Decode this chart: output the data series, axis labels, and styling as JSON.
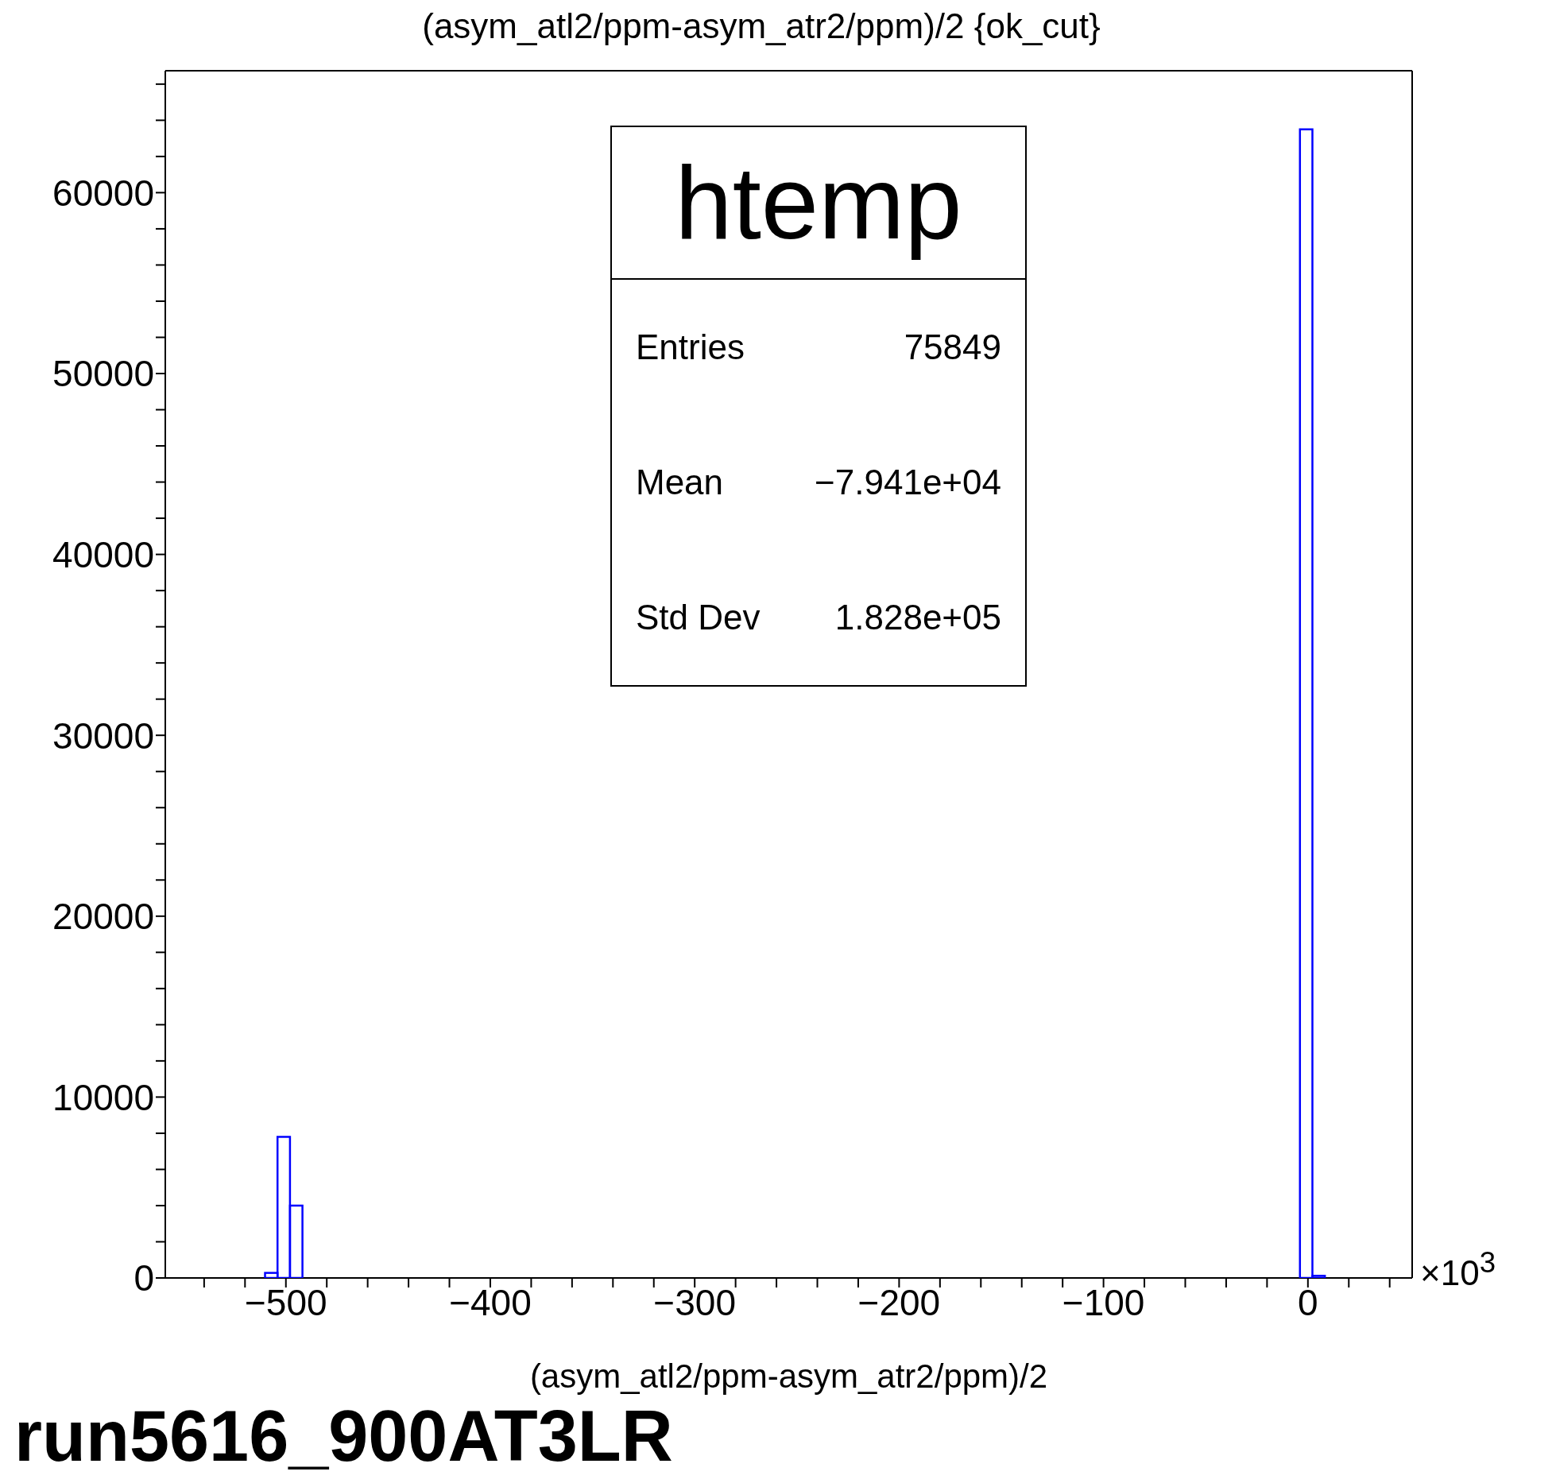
{
  "chart_data": {
    "type": "histogram",
    "title": "(asym_atl2/ppm-asym_atr2/ppm)/2 {ok_cut}",
    "xlabel": "(asym_atl2/ppm-asym_atr2/ppm)/2",
    "bins": [
      -510.2,
      -504.1,
      -498,
      -491.9,
      -3.9,
      2.2,
      8.3
    ],
    "values": [
      280,
      7800,
      4000,
      0,
      63500,
      120
    ],
    "color": "#0000ff",
    "xlim": [
      -559,
      51
    ],
    "xticks": [
      {
        "value": -540,
        "label": null
      },
      {
        "value": -520,
        "label": null
      },
      {
        "value": -500,
        "label": "−500"
      },
      {
        "value": -480,
        "label": null
      },
      {
        "value": -460,
        "label": null
      },
      {
        "value": -440,
        "label": null
      },
      {
        "value": -420,
        "label": null
      },
      {
        "value": -400,
        "label": "−400"
      },
      {
        "value": -380,
        "label": null
      },
      {
        "value": -360,
        "label": null
      },
      {
        "value": -340,
        "label": null
      },
      {
        "value": -320,
        "label": null
      },
      {
        "value": -300,
        "label": "−300"
      },
      {
        "value": -280,
        "label": null
      },
      {
        "value": -260,
        "label": null
      },
      {
        "value": -240,
        "label": null
      },
      {
        "value": -220,
        "label": null
      },
      {
        "value": -200,
        "label": "−200"
      },
      {
        "value": -180,
        "label": null
      },
      {
        "value": -160,
        "label": null
      },
      {
        "value": -140,
        "label": null
      },
      {
        "value": -120,
        "label": null
      },
      {
        "value": -100,
        "label": "−100"
      },
      {
        "value": -80,
        "label": null
      },
      {
        "value": -60,
        "label": null
      },
      {
        "value": -40,
        "label": null
      },
      {
        "value": -20,
        "label": null
      },
      0,
      {
        "value": 20,
        "label": null
      },
      {
        "value": 40,
        "label": null
      }
    ],
    "ylim": [
      0,
      66740
    ],
    "yticks": [
      0,
      {
        "value": 2000,
        "label": null
      },
      {
        "value": 4000,
        "label": null
      },
      {
        "value": 6000,
        "label": null
      },
      {
        "value": 8000,
        "label": null
      },
      10000,
      {
        "value": 12000,
        "label": null
      },
      {
        "value": 14000,
        "label": null
      },
      {
        "value": 16000,
        "label": null
      },
      {
        "value": 18000,
        "label": null
      },
      20000,
      {
        "value": 22000,
        "label": null
      },
      {
        "value": 24000,
        "label": null
      },
      {
        "value": 26000,
        "label": null
      },
      {
        "value": 28000,
        "label": null
      },
      30000,
      {
        "value": 32000,
        "label": null
      },
      {
        "value": 34000,
        "label": null
      },
      {
        "value": 36000,
        "label": null
      },
      {
        "value": 38000,
        "label": null
      },
      40000,
      {
        "value": 42000,
        "label": null
      },
      {
        "value": 44000,
        "label": null
      },
      {
        "value": 46000,
        "label": null
      },
      {
        "value": 48000,
        "label": null
      },
      50000,
      {
        "value": 52000,
        "label": null
      },
      {
        "value": 54000,
        "label": null
      },
      {
        "value": 56000,
        "label": null
      },
      {
        "value": 58000,
        "label": null
      },
      60000,
      {
        "value": 62000,
        "label": null
      },
      {
        "value": 64000,
        "label": null
      },
      {
        "value": 66000,
        "label": null
      }
    ],
    "annotations": [
      "htemp",
      "Entries",
      "75849",
      "Mean",
      "−7.941e+04",
      "Std Dev",
      "1.828e+05",
      "×10$^{3}$",
      "run5616_900AT3LR"
    ]
  }
}
